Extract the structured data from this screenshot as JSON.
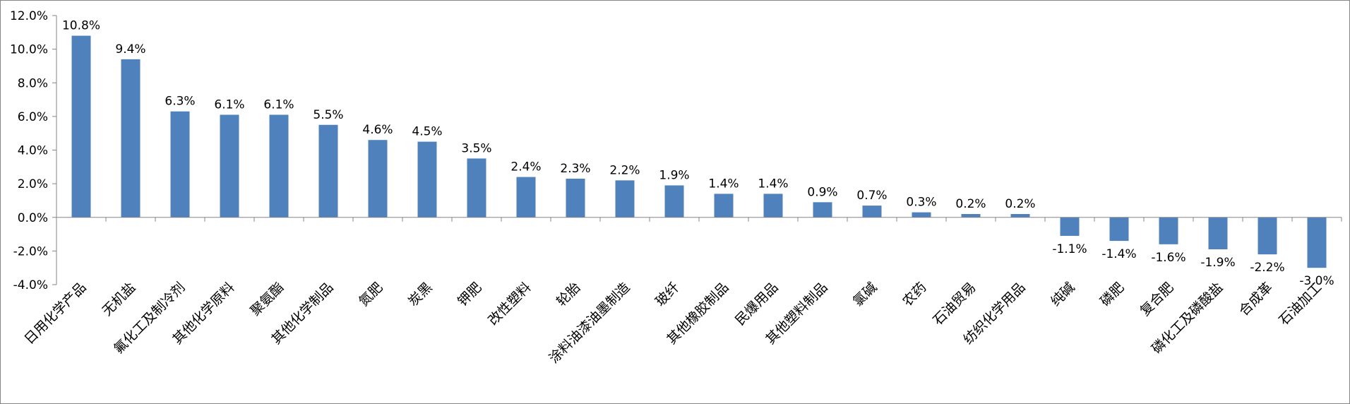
{
  "chart_data": {
    "type": "bar",
    "title": "",
    "xlabel": "",
    "ylabel": "",
    "ylim": [
      -4.0,
      12.0
    ],
    "ytick_step": 2.0,
    "yticks": [
      "12.0%",
      "10.0%",
      "8.0%",
      "6.0%",
      "4.0%",
      "2.0%",
      "0.0%",
      "-2.0%",
      "-4.0%"
    ],
    "grid": false,
    "legend": "none",
    "bar_color": "#4f81bd",
    "categories": [
      "日用化学产品",
      "无机盐",
      "氟化工及制冷剂",
      "其他化学原料",
      "聚氨酯",
      "其他化学制品",
      "氮肥",
      "炭黑",
      "钾肥",
      "改性塑料",
      "轮胎",
      "涂料油漆油墨制造",
      "玻纤",
      "其他橡胶制品",
      "民爆用品",
      "其他塑料制品",
      "氯碱",
      "农药",
      "石油贸易",
      "纺织化学用品",
      "纯碱",
      "磷肥",
      "复合肥",
      "磷化工及磷酸盐",
      "合成革",
      "石油加工"
    ],
    "values": [
      10.8,
      9.4,
      6.3,
      6.1,
      6.1,
      5.5,
      4.6,
      4.5,
      3.5,
      2.4,
      2.3,
      2.2,
      1.9,
      1.4,
      1.4,
      0.9,
      0.7,
      0.3,
      0.2,
      0.2,
      -1.1,
      -1.4,
      -1.6,
      -1.9,
      -2.2,
      -3.0
    ],
    "data_labels": [
      "10.8%",
      "9.4%",
      "6.3%",
      "6.1%",
      "6.1%",
      "5.5%",
      "4.6%",
      "4.5%",
      "3.5%",
      "2.4%",
      "2.3%",
      "2.2%",
      "1.9%",
      "1.4%",
      "1.4%",
      "0.9%",
      "0.7%",
      "0.3%",
      "0.2%",
      "0.2%",
      "-1.1%",
      "-1.4%",
      "-1.6%",
      "-1.9%",
      "-2.2%",
      "-3.0%"
    ]
  }
}
